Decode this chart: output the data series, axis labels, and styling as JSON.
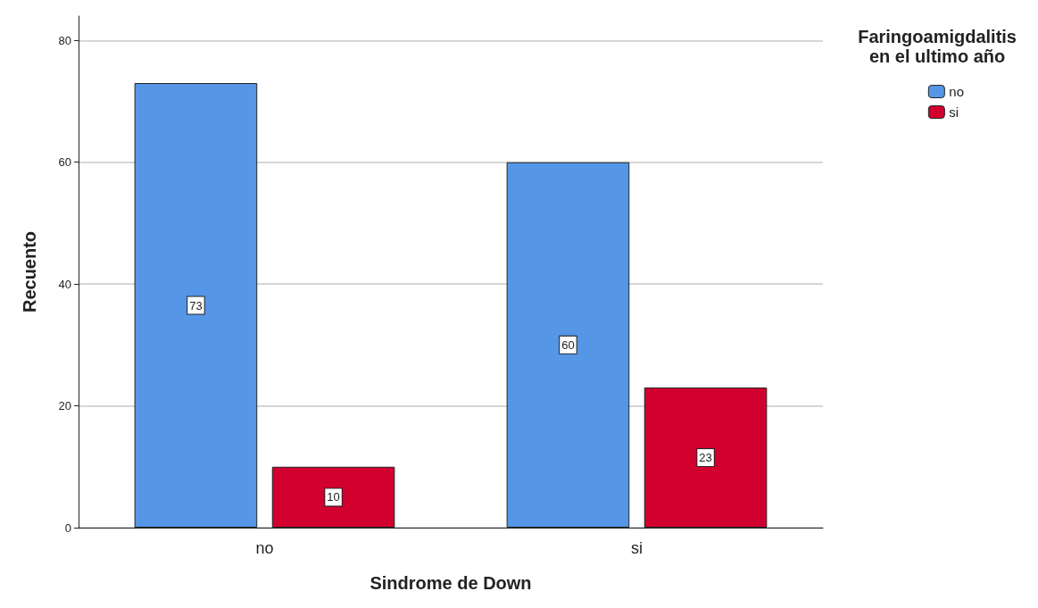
{
  "chart_data": {
    "type": "bar",
    "xlabel": "Sindrome de Down",
    "ylabel": "Recuento",
    "legend_title": "Faringoamigdalitis\nen el ultimo año",
    "categories": [
      "no",
      "si"
    ],
    "series": [
      {
        "name": "no",
        "color": "#5596e6",
        "values": [
          73,
          60
        ]
      },
      {
        "name": "si",
        "color": "#d2002e",
        "values": [
          10,
          23
        ]
      }
    ],
    "ylim": [
      0,
      84
    ],
    "yticks": [
      0,
      20,
      40,
      60,
      80
    ],
    "grid": "y",
    "legend": "top right",
    "data_labels": true
  }
}
